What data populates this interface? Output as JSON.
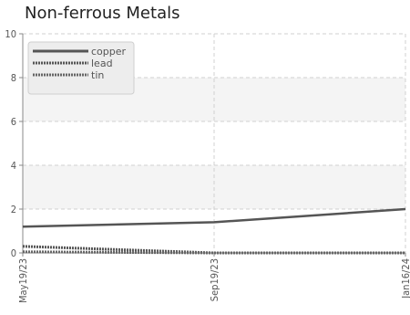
{
  "chart_data": {
    "type": "line",
    "title": "Non-ferrous Metals",
    "x": [
      "May19/23",
      "Sep19/23",
      "Jan16/24"
    ],
    "x_ticks": [
      "May19/23",
      "Sep19/23",
      "Jan16/24"
    ],
    "ylim": [
      0,
      10
    ],
    "y_ticks": [
      "0",
      "2",
      "4",
      "6",
      "8",
      "10"
    ],
    "grid": true,
    "legend_position": "top-left",
    "series": [
      {
        "name": "copper",
        "values": [
          1.2,
          1.4,
          2.0
        ],
        "color": "#555555",
        "style": "solid"
      },
      {
        "name": "lead",
        "values": [
          0.3,
          0.0,
          0.0
        ],
        "color": "#555555",
        "style": "dotted"
      },
      {
        "name": "tin",
        "values": [
          0.05,
          0.0,
          0.0
        ],
        "color": "#666666",
        "style": "dotted"
      }
    ]
  }
}
